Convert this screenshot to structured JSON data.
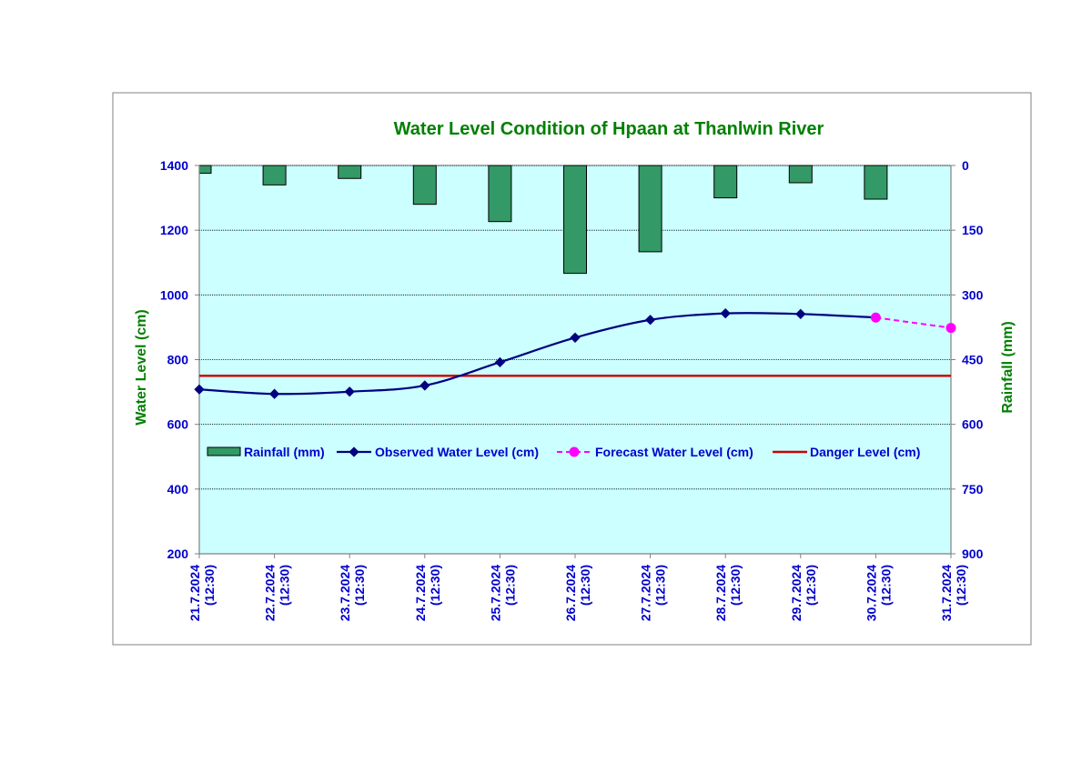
{
  "chart_data": {
    "type": "bar+line",
    "title": "Water Level Condition of Hpaan at Thanlwin River",
    "ylabel_left": "Water Level (cm)",
    "ylabel_right": "Rainfall (mm)",
    "ylim_left": [
      200,
      1400
    ],
    "ylim_right_inverted": [
      0,
      900
    ],
    "yticks_left": [
      "1400",
      "1200",
      "1000",
      "800",
      "600",
      "400",
      "200"
    ],
    "yticks_right": [
      "0",
      "150",
      "300",
      "450",
      "600",
      "750",
      "900"
    ],
    "categories": [
      [
        "21.7.2024",
        "(12:30)"
      ],
      [
        "22.7.2024",
        "(12:30)"
      ],
      [
        "23.7.2024",
        "(12:30)"
      ],
      [
        "24.7.2024",
        "(12:30)"
      ],
      [
        "25.7.2024",
        "(12:30)"
      ],
      [
        "26.7.2024",
        "(12:30)"
      ],
      [
        "27.7.2024",
        "(12:30)"
      ],
      [
        "28.7.2024",
        "(12:30)"
      ],
      [
        "29.7.2024",
        "(12:30)"
      ],
      [
        "30.7.2024",
        "(12:30)"
      ],
      [
        "31.7.2024",
        "(12:30)"
      ]
    ],
    "rainfall": [
      18,
      45,
      30,
      90,
      130,
      250,
      200,
      75,
      40,
      78
    ],
    "observed": [
      708,
      694,
      701,
      720,
      792,
      868,
      923,
      943,
      941,
      930
    ],
    "forecast_x_index": [
      9,
      10
    ],
    "forecast": [
      930,
      898
    ],
    "danger_level": 750,
    "legend": [
      {
        "label": "Rainfall (mm)",
        "kind": "bar"
      },
      {
        "label": "Observed Water Level (cm)",
        "kind": "line-diamond"
      },
      {
        "label": "Forecast Water Level (cm)",
        "kind": "dashed-circle"
      },
      {
        "label": "Danger Level (cm)",
        "kind": "line"
      }
    ],
    "legend_position": "inside-middle",
    "grid": true,
    "colors": {
      "plot_bg": "#ccffff",
      "rain_fill": "#339966",
      "observed": "#000080",
      "forecast": "#ff00ff",
      "danger": "#cc0000",
      "title": "#008000",
      "axis_title": "#008000",
      "tick": "#0000cc"
    }
  }
}
